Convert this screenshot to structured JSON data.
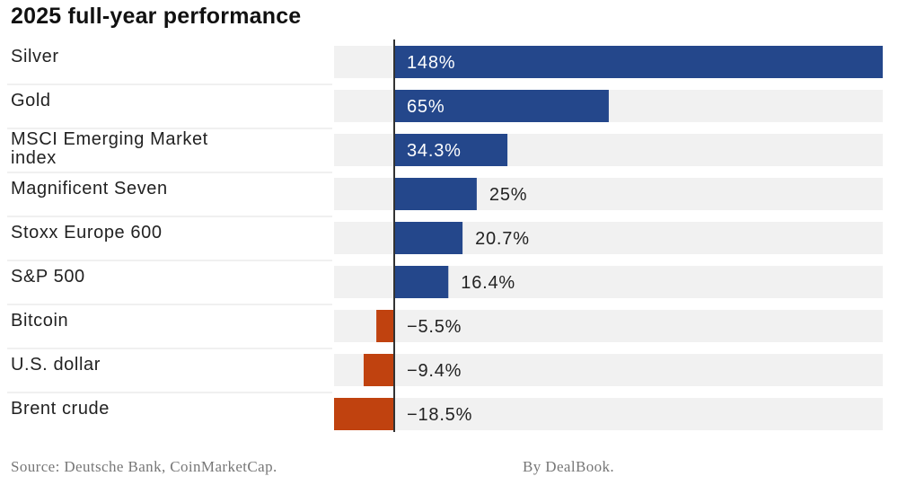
{
  "chart_data": {
    "type": "bar",
    "orientation": "horizontal",
    "title": "2025 full-year performance",
    "categories": [
      [
        "Silver"
      ],
      [
        "Gold"
      ],
      [
        "MSCI Emerging Market",
        "index"
      ],
      [
        "Magnificent Seven"
      ],
      [
        "Stoxx Europe 600"
      ],
      [
        "S&P 500"
      ],
      [
        "Bitcoin"
      ],
      [
        "U.S. dollar"
      ],
      [
        "Brent crude"
      ]
    ],
    "values": [
      148,
      65,
      34.3,
      25,
      20.7,
      16.4,
      -5.5,
      -9.4,
      -18.5
    ],
    "value_labels": [
      "148%",
      "65%",
      "34.3%",
      "25%",
      "20.7%",
      "16.4%",
      "−5.5%",
      "−9.4%",
      "−18.5%"
    ],
    "xlim": [
      -18.5,
      148
    ],
    "grid": false,
    "legend": "none"
  },
  "colors": {
    "positive": "#24478b",
    "negative": "#c0420f",
    "track": "#f1f1f1",
    "axis": "#333333",
    "label_inside": "#ffffff",
    "label_outside": "#222222"
  },
  "notes": {
    "source": "Source: Deutsche Bank, CoinMarketCap.",
    "credit": "By DealBook."
  }
}
